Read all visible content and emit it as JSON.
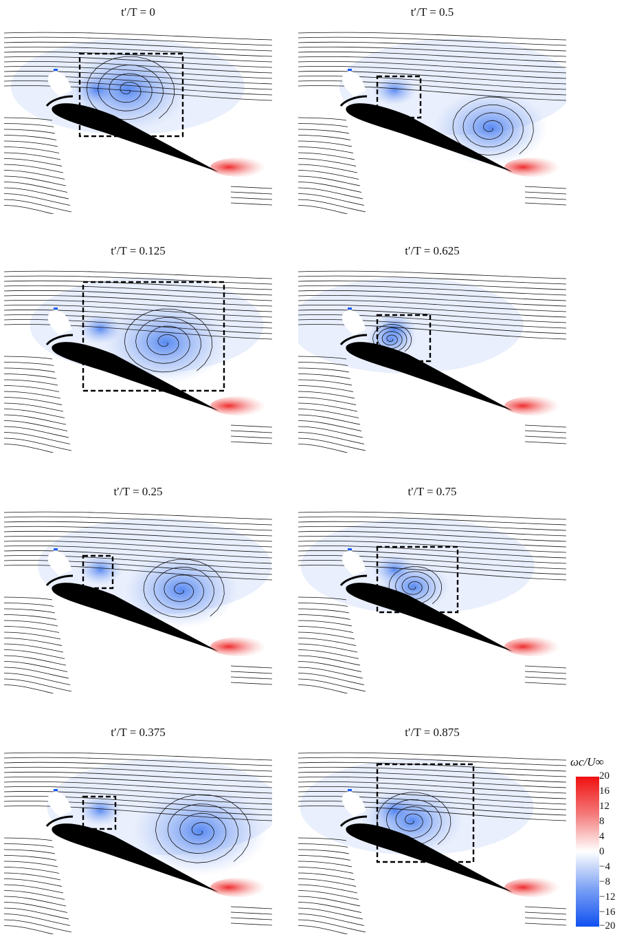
{
  "figure": {
    "panels": [
      {
        "id": "p0",
        "label_prefix": "t′/T = ",
        "label_value": "0"
      },
      {
        "id": "p0500",
        "label_prefix": "t′/T = ",
        "label_value": "0.5"
      },
      {
        "id": "p0125",
        "label_prefix": "t′/T = ",
        "label_value": "0.125"
      },
      {
        "id": "p0625",
        "label_prefix": "t′/T = ",
        "label_value": "0.625"
      },
      {
        "id": "p0250",
        "label_prefix": "t′/T = ",
        "label_value": "0.25"
      },
      {
        "id": "p0750",
        "label_prefix": "t′/T = ",
        "label_value": "0.75"
      },
      {
        "id": "p0375",
        "label_prefix": "t′/T = ",
        "label_value": "0.375"
      },
      {
        "id": "p0875",
        "label_prefix": "t′/T = ",
        "label_value": "0.875"
      }
    ],
    "colorbar": {
      "label": "ωc/U∞",
      "ticks": [
        "20",
        "16",
        "12",
        "8",
        "4",
        "0",
        "−4",
        "−8",
        "−12",
        "−16",
        "−20"
      ],
      "range": [
        -20,
        20
      ],
      "colors": {
        "positive": "#ff1a1a",
        "zero": "#ffffff",
        "negative": "#1a5cff"
      }
    }
  }
}
